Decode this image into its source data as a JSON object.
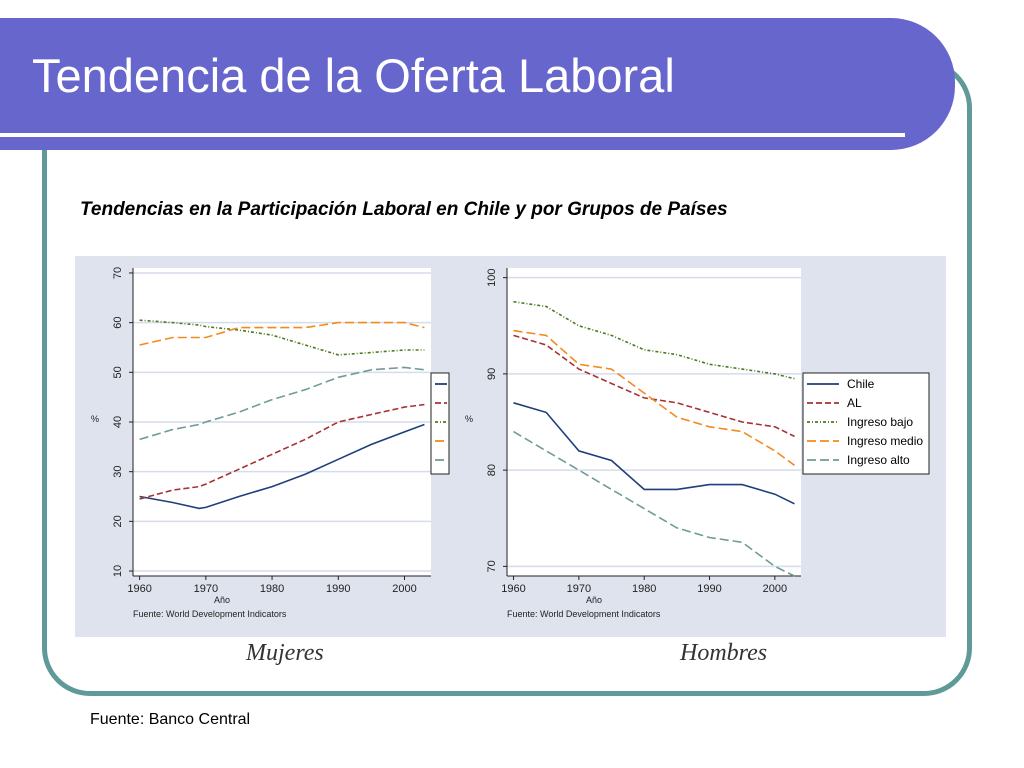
{
  "slide": {
    "title": "Tendencia de la Oferta Laboral",
    "subtitle": "Tendencias en la Participación Laboral en Chile y por Grupos de Países",
    "source": "Fuente: Banco Central"
  },
  "colors": {
    "title_bar": "#6666cc",
    "frame": "#5f9a98",
    "plot_bg": "#dfe3ee",
    "Chile": "#1f3f7a",
    "AL": "#a83232",
    "Ingreso bajo": "#4c7a1c",
    "Ingreso medio": "#f28a1e",
    "Ingreso alto": "#6f9c96"
  },
  "chart_data": [
    {
      "type": "line",
      "caption": "Mujeres",
      "ylabel": "%",
      "xlabel": "Año",
      "note": "Fuente: World Development Indicators",
      "xlim": [
        1959,
        2004
      ],
      "ylim": [
        9,
        71
      ],
      "yticks": [
        10,
        20,
        30,
        40,
        50,
        60,
        70
      ],
      "xticks": [
        1960,
        1970,
        1980,
        1990,
        2000
      ],
      "grid": true,
      "legend_position": "right (partially hidden)",
      "x": [
        1960,
        1965,
        1969,
        1970,
        1975,
        1980,
        1985,
        1990,
        1995,
        2000,
        2003
      ],
      "series": [
        {
          "name": "Chile",
          "style": "solid",
          "values": [
            25,
            23.8,
            22.6,
            22.8,
            25,
            27,
            29.5,
            32.5,
            35.5,
            38,
            39.5
          ]
        },
        {
          "name": "AL",
          "style": "dashed",
          "values": [
            24.5,
            26.3,
            27,
            27.5,
            30.5,
            33.5,
            36.5,
            40,
            41.5,
            43,
            43.5
          ]
        },
        {
          "name": "Ingreso bajo",
          "style": "dashdot",
          "values": [
            60.5,
            60,
            59.5,
            59.2,
            58.5,
            57.5,
            55.5,
            53.5,
            54,
            54.5,
            54.5
          ]
        },
        {
          "name": "Ingreso medio",
          "style": "longdash",
          "values": [
            55.5,
            57,
            57,
            57,
            59,
            59,
            59,
            60,
            60,
            60,
            59
          ]
        },
        {
          "name": "Ingreso alto",
          "style": "longdash",
          "values": [
            36.5,
            38.5,
            39.5,
            40,
            42,
            44.5,
            46.5,
            49,
            50.5,
            51,
            50.5
          ]
        }
      ]
    },
    {
      "type": "line",
      "caption": "Hombres",
      "ylabel": "%",
      "xlabel": "Año",
      "note": "Fuente: World Development Indicators",
      "xlim": [
        1959,
        2004
      ],
      "ylim": [
        69,
        101
      ],
      "yticks": [
        70,
        80,
        90,
        100
      ],
      "xticks": [
        1960,
        1970,
        1980,
        1990,
        2000
      ],
      "grid": true,
      "legend_position": "right",
      "legend": [
        "Chile",
        "AL",
        "Ingreso bajo",
        "Ingreso medio",
        "Ingreso alto"
      ],
      "x": [
        1960,
        1965,
        1970,
        1975,
        1980,
        1985,
        1990,
        1995,
        2000,
        2003
      ],
      "series": [
        {
          "name": "Chile",
          "style": "solid",
          "values": [
            87,
            86,
            82,
            81,
            78,
            78,
            78.5,
            78.5,
            77.5,
            76.5
          ]
        },
        {
          "name": "AL",
          "style": "dashed",
          "values": [
            94,
            93,
            90.5,
            89,
            87.5,
            87,
            86,
            85,
            84.5,
            83.5
          ]
        },
        {
          "name": "Ingreso bajo",
          "style": "dashdot",
          "values": [
            97.5,
            97,
            95,
            94,
            92.5,
            92,
            91,
            90.5,
            90,
            89.5
          ]
        },
        {
          "name": "Ingreso medio",
          "style": "longdash",
          "values": [
            94.5,
            94,
            91,
            90.5,
            88,
            85.5,
            84.5,
            84,
            82,
            80.5
          ]
        },
        {
          "name": "Ingreso alto",
          "style": "longdash",
          "values": [
            84,
            82,
            80,
            78,
            76,
            74,
            73,
            72.5,
            70,
            69
          ]
        }
      ]
    }
  ]
}
